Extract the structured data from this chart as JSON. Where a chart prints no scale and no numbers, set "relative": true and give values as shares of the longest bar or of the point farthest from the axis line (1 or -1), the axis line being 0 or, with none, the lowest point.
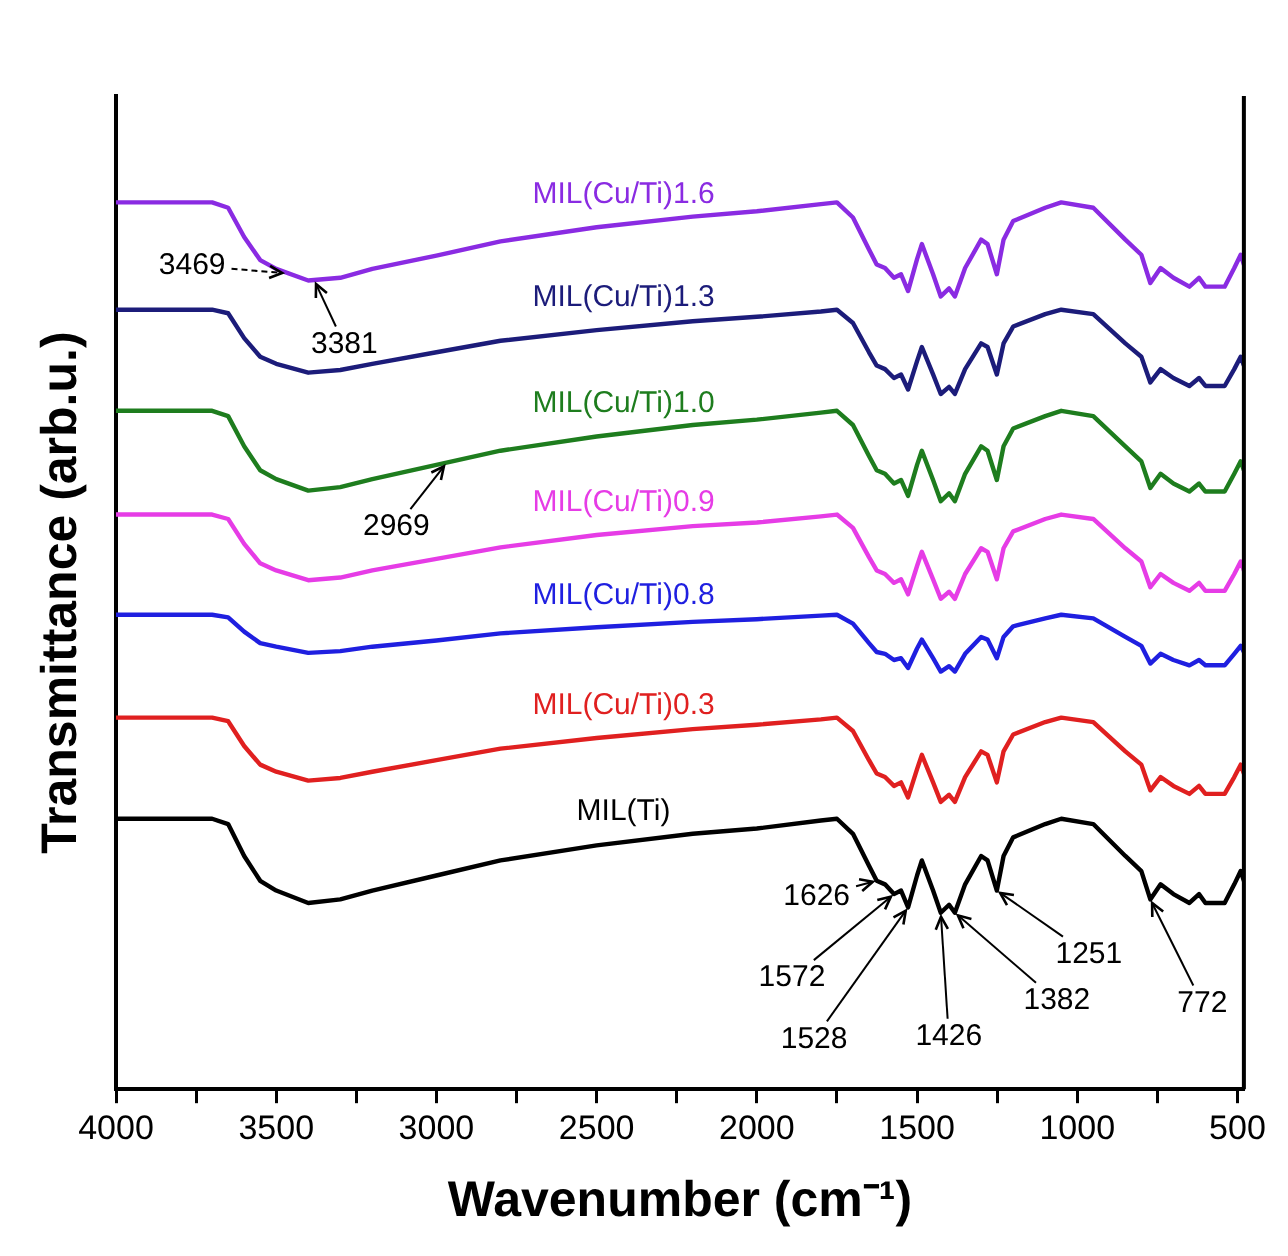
{
  "chart_data": {
    "type": "line",
    "relative": true,
    "xlabel": "Wavenumber (cm⁻¹)",
    "ylabel": "Transmittance (arb.u.)",
    "x": [
      4000,
      3700,
      3650,
      3600,
      3550,
      3500,
      3400,
      3300,
      3200,
      3000,
      2800,
      2500,
      2200,
      2000,
      1800,
      1750,
      1700,
      1650,
      1626,
      1600,
      1572,
      1550,
      1528,
      1500,
      1485,
      1450,
      1426,
      1400,
      1382,
      1350,
      1300,
      1280,
      1251,
      1230,
      1200,
      1100,
      1050,
      950,
      850,
      800,
      772,
      740,
      700,
      650,
      620,
      600,
      540,
      510,
      490,
      480
    ],
    "xlim": [
      4000,
      480
    ],
    "xticks": [
      4000,
      {
        "value": 3750,
        "label": null
      },
      3500,
      {
        "value": 3250,
        "label": null
      },
      3000,
      {
        "value": 2750,
        "label": null
      },
      2500,
      {
        "value": 2250,
        "label": null
      },
      2000,
      {
        "value": 1750,
        "label": null
      },
      1500,
      {
        "value": 1250,
        "label": null
      },
      1000,
      {
        "value": 750,
        "label": null
      },
      500
    ],
    "grid": false,
    "legend": false,
    "marker": "none",
    "line_style": "solid",
    "series": [
      {
        "name": "MIL(Cu/Ti)1.6",
        "color": "#8a2be2",
        "values": [
          1.0,
          1.0,
          0.994,
          0.961,
          0.935,
          0.925,
          0.912,
          0.915,
          0.925,
          0.94,
          0.956,
          0.972,
          0.984,
          0.99,
          0.998,
          1.0,
          0.983,
          0.947,
          0.93,
          0.926,
          0.915,
          0.919,
          0.9,
          0.936,
          0.953,
          0.919,
          0.894,
          0.903,
          0.894,
          0.926,
          0.958,
          0.953,
          0.919,
          0.958,
          0.979,
          0.994,
          1.0,
          0.994,
          0.958,
          0.941,
          0.909,
          0.926,
          0.915,
          0.905,
          0.915,
          0.905,
          0.905,
          0.926,
          0.941,
          0.93
        ]
      },
      {
        "name": "MIL(Cu/Ti)1.3",
        "color": "#1c1c7a",
        "values": [
          0.879,
          0.879,
          0.875,
          0.847,
          0.826,
          0.818,
          0.808,
          0.811,
          0.818,
          0.831,
          0.844,
          0.856,
          0.866,
          0.871,
          0.877,
          0.879,
          0.864,
          0.831,
          0.816,
          0.812,
          0.802,
          0.806,
          0.789,
          0.821,
          0.837,
          0.806,
          0.784,
          0.792,
          0.784,
          0.812,
          0.841,
          0.837,
          0.806,
          0.841,
          0.86,
          0.874,
          0.879,
          0.874,
          0.841,
          0.826,
          0.797,
          0.812,
          0.802,
          0.793,
          0.802,
          0.793,
          0.793,
          0.812,
          0.826,
          0.816
        ]
      },
      {
        "name": "MIL(Cu/Ti)1.0",
        "color": "#1e7d1e",
        "values": [
          0.765,
          0.765,
          0.759,
          0.725,
          0.698,
          0.688,
          0.675,
          0.679,
          0.688,
          0.704,
          0.72,
          0.736,
          0.749,
          0.755,
          0.763,
          0.765,
          0.749,
          0.714,
          0.698,
          0.694,
          0.683,
          0.687,
          0.669,
          0.704,
          0.72,
          0.687,
          0.663,
          0.672,
          0.663,
          0.694,
          0.725,
          0.72,
          0.687,
          0.725,
          0.745,
          0.759,
          0.765,
          0.759,
          0.725,
          0.708,
          0.678,
          0.694,
          0.683,
          0.674,
          0.683,
          0.674,
          0.674,
          0.694,
          0.708,
          0.698
        ]
      },
      {
        "name": "MIL(Cu/Ti)0.9",
        "color": "#e63ce6",
        "values": [
          0.648,
          0.648,
          0.643,
          0.615,
          0.593,
          0.585,
          0.574,
          0.577,
          0.585,
          0.598,
          0.611,
          0.625,
          0.635,
          0.639,
          0.646,
          0.648,
          0.633,
          0.6,
          0.585,
          0.581,
          0.571,
          0.575,
          0.558,
          0.59,
          0.606,
          0.575,
          0.553,
          0.561,
          0.553,
          0.581,
          0.61,
          0.606,
          0.575,
          0.61,
          0.629,
          0.643,
          0.648,
          0.643,
          0.61,
          0.595,
          0.566,
          0.581,
          0.571,
          0.562,
          0.571,
          0.562,
          0.562,
          0.581,
          0.595,
          0.585
        ]
      },
      {
        "name": "MIL(Cu/Ti)0.8",
        "color": "#1f1fe0",
        "values": [
          0.535,
          0.535,
          0.532,
          0.516,
          0.503,
          0.499,
          0.492,
          0.494,
          0.499,
          0.506,
          0.514,
          0.521,
          0.527,
          0.53,
          0.534,
          0.535,
          0.525,
          0.503,
          0.493,
          0.491,
          0.484,
          0.486,
          0.475,
          0.497,
          0.507,
          0.486,
          0.471,
          0.477,
          0.471,
          0.491,
          0.51,
          0.507,
          0.486,
          0.51,
          0.522,
          0.531,
          0.535,
          0.531,
          0.51,
          0.5,
          0.48,
          0.491,
          0.484,
          0.478,
          0.484,
          0.478,
          0.478,
          0.491,
          0.5,
          0.493
        ]
      },
      {
        "name": "MIL(Cu/Ti)0.3",
        "color": "#e02020",
        "values": [
          0.419,
          0.419,
          0.415,
          0.387,
          0.366,
          0.358,
          0.348,
          0.351,
          0.358,
          0.371,
          0.384,
          0.396,
          0.406,
          0.411,
          0.417,
          0.419,
          0.404,
          0.371,
          0.356,
          0.352,
          0.342,
          0.346,
          0.329,
          0.361,
          0.377,
          0.346,
          0.324,
          0.332,
          0.324,
          0.352,
          0.381,
          0.377,
          0.346,
          0.381,
          0.4,
          0.414,
          0.419,
          0.414,
          0.381,
          0.366,
          0.337,
          0.352,
          0.342,
          0.333,
          0.342,
          0.333,
          0.333,
          0.352,
          0.366,
          0.356
        ]
      },
      {
        "name": "MIL(Ti)",
        "color": "#000000",
        "values": [
          0.305,
          0.305,
          0.299,
          0.263,
          0.235,
          0.224,
          0.21,
          0.214,
          0.224,
          0.241,
          0.258,
          0.275,
          0.288,
          0.294,
          0.303,
          0.305,
          0.288,
          0.252,
          0.235,
          0.231,
          0.22,
          0.224,
          0.205,
          0.241,
          0.258,
          0.224,
          0.199,
          0.208,
          0.199,
          0.231,
          0.263,
          0.258,
          0.224,
          0.263,
          0.284,
          0.299,
          0.305,
          0.299,
          0.263,
          0.246,
          0.214,
          0.231,
          0.22,
          0.21,
          0.22,
          0.21,
          0.21,
          0.231,
          0.246,
          0.235
        ]
      }
    ],
    "annotations": [
      {
        "text": "3469",
        "x": 3469,
        "y": 0.92
      },
      {
        "text": "3381",
        "x": 3381,
        "y": 0.912
      },
      {
        "text": "2969",
        "x": 2969,
        "y": 0.706
      },
      {
        "text": "1626",
        "x": 1626,
        "y": 0.235
      },
      {
        "text": "1572",
        "x": 1572,
        "y": 0.22
      },
      {
        "text": "1528",
        "x": 1528,
        "y": 0.205
      },
      {
        "text": "1426",
        "x": 1426,
        "y": 0.199
      },
      {
        "text": "1382",
        "x": 1382,
        "y": 0.199
      },
      {
        "text": "1251",
        "x": 1251,
        "y": 0.224
      },
      {
        "text": "772",
        "x": 772,
        "y": 0.214
      }
    ]
  }
}
